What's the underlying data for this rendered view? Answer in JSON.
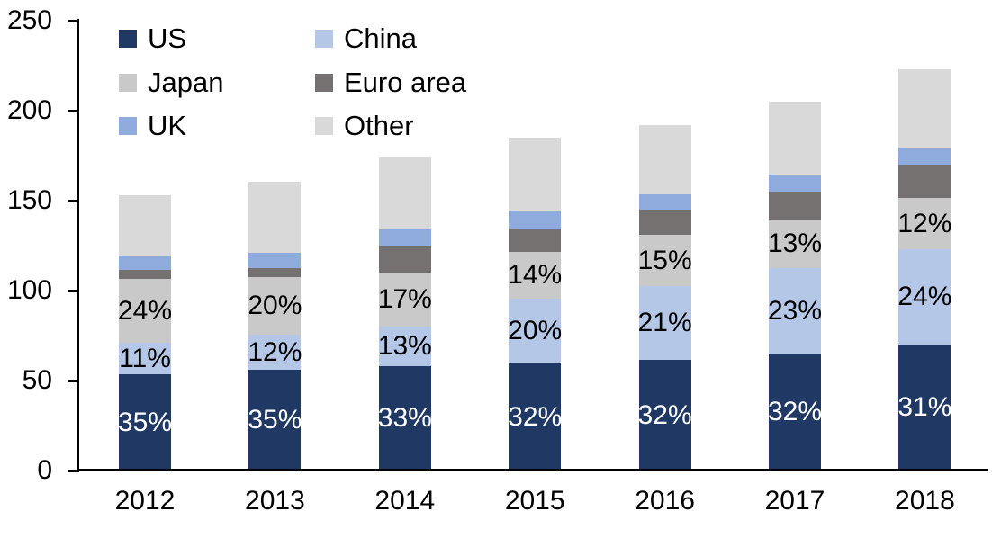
{
  "chart_data": {
    "type": "bar",
    "stacked": true,
    "title": "",
    "xlabel": "",
    "ylabel": "",
    "categories": [
      "2012",
      "2013",
      "2014",
      "2015",
      "2016",
      "2017",
      "2018"
    ],
    "series": [
      {
        "name": "US",
        "color": "#1F3864",
        "label_color": "#FFFFFF",
        "values": [
          53.5,
          56,
          58,
          59.5,
          61.5,
          65,
          70
        ],
        "labels": [
          "35%",
          "35%",
          "33%",
          "32%",
          "32%",
          "32%",
          "31%"
        ]
      },
      {
        "name": "China",
        "color": "#B4C7E7",
        "label_color": "#000000",
        "values": [
          17.5,
          19.5,
          22,
          36,
          41,
          47.5,
          53
        ],
        "labels": [
          "11%",
          "12%",
          "13%",
          "20%",
          "21%",
          "23%",
          "24%"
        ]
      },
      {
        "name": "Japan",
        "color": "#C9C9C9",
        "label_color": "#000000",
        "values": [
          35.5,
          32,
          30,
          26,
          28.5,
          27,
          28.5
        ],
        "labels": [
          "24%",
          "20%",
          "17%",
          "14%",
          "15%",
          "13%",
          "12%"
        ]
      },
      {
        "name": "Euro area",
        "color": "#767171",
        "label_color": "#000000",
        "values": [
          5,
          5,
          15,
          13,
          14,
          15.5,
          18.5
        ],
        "labels": null
      },
      {
        "name": "UK",
        "color": "#8FAADC",
        "label_color": "#000000",
        "values": [
          8,
          8.5,
          9,
          10,
          8.5,
          9.5,
          9.5
        ],
        "labels": null
      },
      {
        "name": "Other",
        "color": "#D9D9D9",
        "label_color": "#000000",
        "values": [
          33.5,
          39.5,
          40,
          40.5,
          38.5,
          40.5,
          43.5
        ],
        "labels": null
      }
    ],
    "totals": [
      153,
      160.5,
      174,
      185,
      192,
      205,
      223
    ],
    "ylim": [
      0,
      250
    ],
    "yticks": [
      0,
      50,
      100,
      150,
      200,
      250
    ],
    "grid": false,
    "legend_position": "top-left",
    "legend_columns": 2,
    "axis_color": "#000000",
    "background_color": "#FFFFFF"
  }
}
